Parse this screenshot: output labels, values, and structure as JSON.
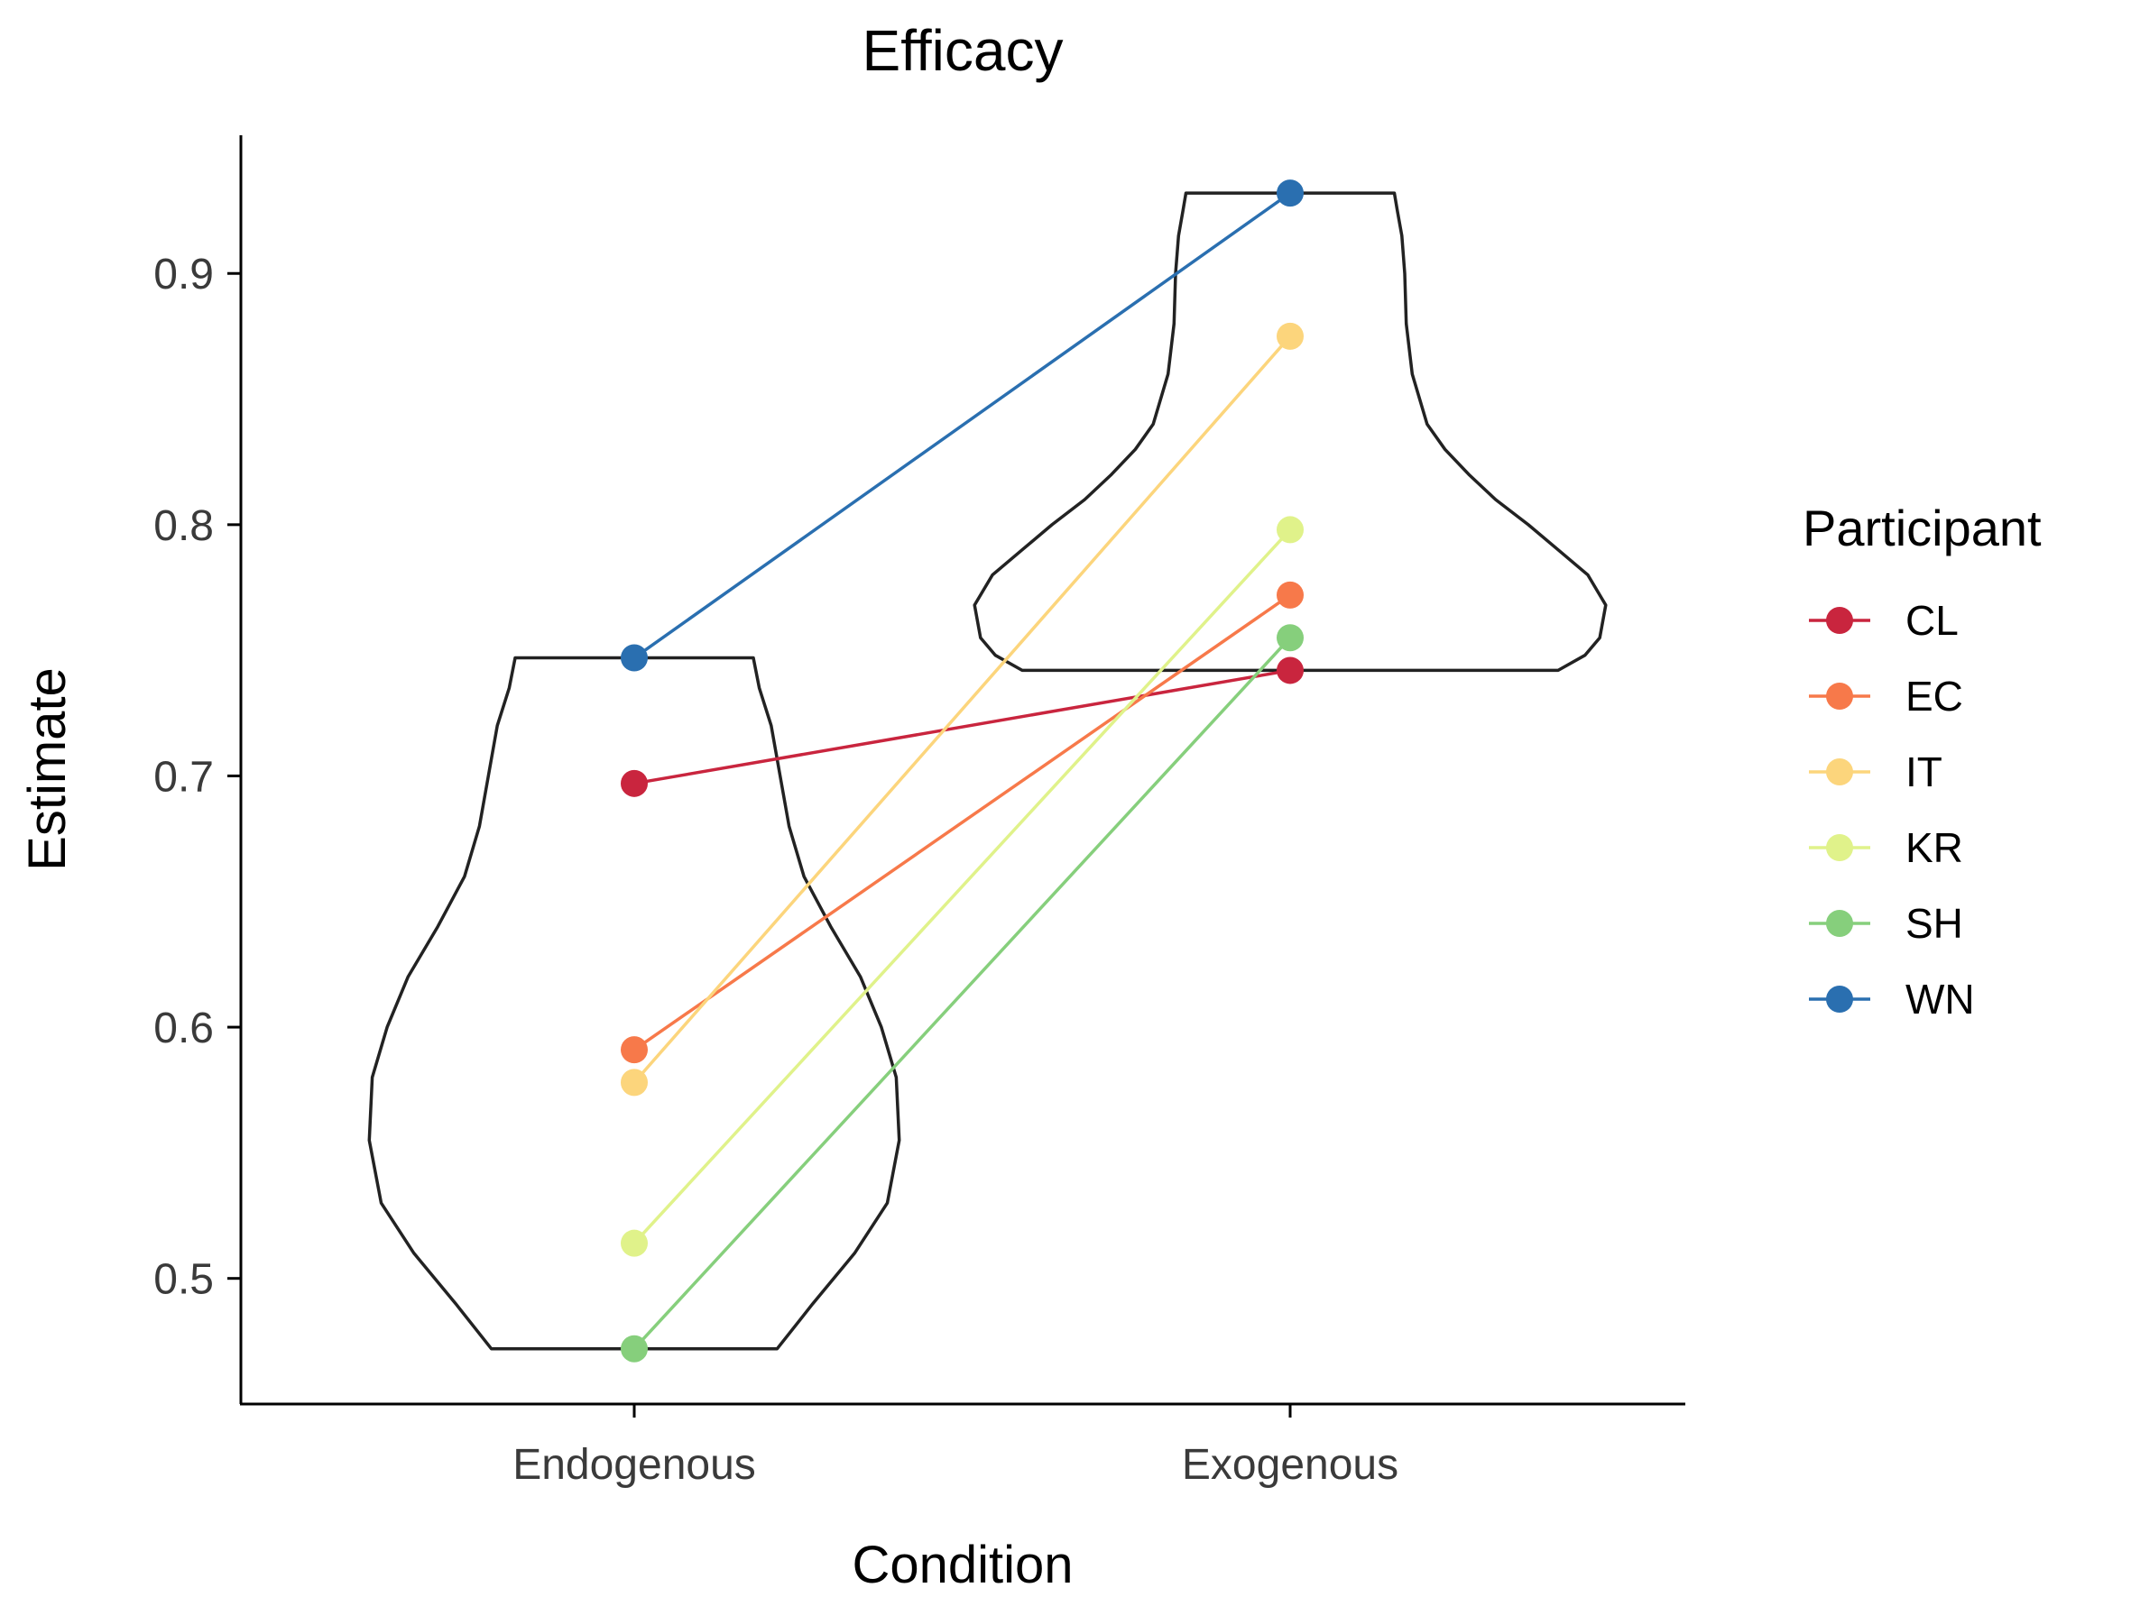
{
  "chart_data": {
    "type": "violin-paired-points",
    "title": "Efficacy",
    "xlabel": "Condition",
    "ylabel": "Estimate",
    "categories": [
      "Endogenous",
      "Exogenous"
    ],
    "ylim": [
      0.45,
      0.955
    ],
    "yticks": [
      0.5,
      0.6,
      0.7,
      0.8,
      0.9
    ],
    "ytick_labels": [
      "0.5",
      "0.6",
      "0.7",
      "0.8",
      "0.9"
    ],
    "grid": false,
    "legend": {
      "title": "Participant",
      "placement": "right"
    },
    "series": [
      {
        "name": "CL",
        "color": "#c9253e",
        "values": [
          0.697,
          0.742
        ]
      },
      {
        "name": "EC",
        "color": "#f7794a",
        "values": [
          0.591,
          0.772
        ]
      },
      {
        "name": "IT",
        "color": "#fcd57c",
        "values": [
          0.578,
          0.875
        ]
      },
      {
        "name": "KR",
        "color": "#e0f28a",
        "values": [
          0.514,
          0.798
        ]
      },
      {
        "name": "SH",
        "color": "#86cf7c",
        "values": [
          0.472,
          0.755
        ]
      },
      {
        "name": "WN",
        "color": "#2a6fb0",
        "values": [
          0.747,
          0.932
        ]
      }
    ],
    "violins": [
      {
        "category": "Endogenous",
        "profile": [
          [
            0.472,
            0.48
          ],
          [
            0.49,
            0.6
          ],
          [
            0.51,
            0.74
          ],
          [
            0.53,
            0.85
          ],
          [
            0.555,
            0.89
          ],
          [
            0.58,
            0.88
          ],
          [
            0.6,
            0.83
          ],
          [
            0.62,
            0.76
          ],
          [
            0.64,
            0.66
          ],
          [
            0.66,
            0.57
          ],
          [
            0.68,
            0.52
          ],
          [
            0.7,
            0.49
          ],
          [
            0.72,
            0.46
          ],
          [
            0.735,
            0.42
          ],
          [
            0.747,
            0.4
          ]
        ]
      },
      {
        "category": "Exogenous",
        "profile": [
          [
            0.742,
            0.9
          ],
          [
            0.748,
            0.99
          ],
          [
            0.755,
            1.04
          ],
          [
            0.768,
            1.06
          ],
          [
            0.78,
            1.0
          ],
          [
            0.79,
            0.9
          ],
          [
            0.8,
            0.8
          ],
          [
            0.81,
            0.69
          ],
          [
            0.82,
            0.6
          ],
          [
            0.83,
            0.52
          ],
          [
            0.84,
            0.46
          ],
          [
            0.86,
            0.41
          ],
          [
            0.88,
            0.39
          ],
          [
            0.9,
            0.385
          ],
          [
            0.915,
            0.375
          ],
          [
            0.925,
            0.36
          ],
          [
            0.932,
            0.35
          ]
        ]
      }
    ]
  }
}
